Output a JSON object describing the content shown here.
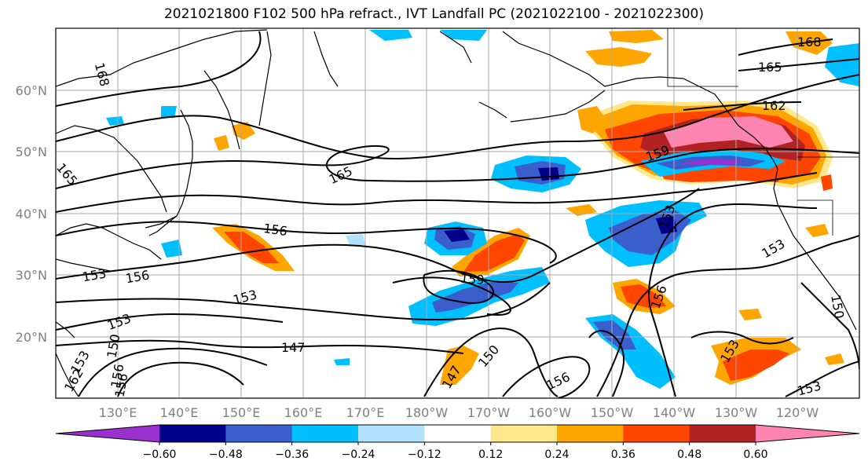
{
  "title": "2021021800 F102 500 hPa refract., IVT Landfall PC (2021022100 - 2021022300)",
  "lat_labels": [
    "60°N",
    "50°N",
    "40°N",
    "30°N",
    "20°N"
  ],
  "lon_labels": [
    "130°E",
    "140°E",
    "150°E",
    "160°E",
    "170°E",
    "180°W",
    "170°W",
    "160°W",
    "150°W",
    "140°W",
    "130°W",
    "120°W"
  ],
  "colorbar": {
    "ticks": [
      "−0.60",
      "−0.48",
      "−0.36",
      "−0.24",
      "−0.12",
      "0.12",
      "0.24",
      "0.36",
      "0.48",
      "0.60"
    ],
    "colors": [
      "#9b30d0",
      "#00008b",
      "#3a5fcd",
      "#00bfff",
      "#b0e2ff",
      "#ffffff",
      "#ffe88a",
      "#ffa500",
      "#ff4500",
      "#b22222",
      "#ff85b0"
    ]
  },
  "contour_labels": [
    "168",
    "165",
    "165",
    "165",
    "168",
    "162",
    "159",
    "156",
    "156",
    "153",
    "153",
    "153",
    "153",
    "156",
    "159",
    "147",
    "150",
    "147",
    "153",
    "156",
    "153",
    "150",
    "153",
    "150",
    "156",
    "153",
    "162",
    "156"
  ],
  "colors": {
    "negative_strong": "#00008b",
    "negative_medium": "#3a5fcd",
    "negative_light": "#00bfff",
    "positive_light": "#ffa500",
    "positive_medium": "#ff4500",
    "positive_strong": "#b22222",
    "positive_max": "#ff85b0"
  }
}
